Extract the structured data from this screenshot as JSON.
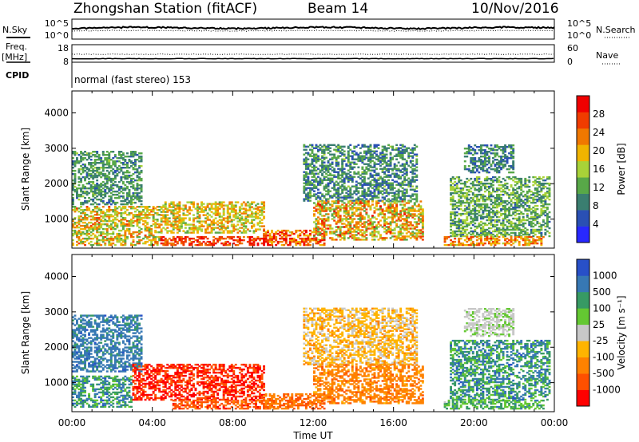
{
  "header": {
    "station_title": "Zhongshan Station (fitACF)",
    "beam_label": "Beam 14",
    "date_label": "10/Nov/2016",
    "cpid_text": "normal (fast stereo) 153"
  },
  "params": {
    "nsky_label": "N.Sky",
    "nsearch_label": "N.Search",
    "freq_label_line1": "Freq.",
    "freq_label_line2": "[MHz]",
    "nave_label": "Nave",
    "cpid_label": "CPID",
    "nsky_ticks": [
      "10^5",
      "10^0"
    ],
    "nsearch_ticks": [
      "10^5",
      "10^0"
    ],
    "freq_ticks": [
      "18",
      "8"
    ],
    "nave_ticks": [
      "60",
      "0"
    ]
  },
  "colors": {
    "power": [
      "#2828ff",
      "#2a50b4",
      "#3a7e70",
      "#58a848",
      "#a8d238",
      "#f0b400",
      "#f07800",
      "#f03c00",
      "#f00000"
    ],
    "velocity": [
      "#ff0000",
      "#ff5000",
      "#ff8200",
      "#ffb400",
      "#c8c8c8",
      "#64c832",
      "#379a64",
      "#3778b4",
      "#2850c8"
    ]
  },
  "chart_data": [
    {
      "type": "heatmap",
      "name": "power-panel",
      "xlabel": "",
      "ylabel": "Slant Range [km]",
      "x_range_hours": [
        0,
        24
      ],
      "ylim_km": [
        180,
        4620
      ],
      "yticks": [
        "1000",
        "2000",
        "3000",
        "4000"
      ],
      "colorbar": {
        "label": "Power [dB]",
        "range": [
          0,
          32
        ],
        "ticks": [
          "4",
          "8",
          "12",
          "16",
          "20",
          "24",
          "28"
        ]
      },
      "regions": [
        {
          "t": [
            0.0,
            4.4
          ],
          "r": [
            250,
            1350
          ],
          "level": [
            0.35,
            0.8
          ]
        },
        {
          "t": [
            0.0,
            3.5
          ],
          "r": [
            1400,
            2900
          ],
          "level": [
            0.2,
            0.45
          ]
        },
        {
          "t": [
            4.4,
            9.5
          ],
          "r": [
            600,
            1500
          ],
          "level": [
            0.4,
            0.75
          ]
        },
        {
          "t": [
            4.4,
            10.0
          ],
          "r": [
            250,
            500
          ],
          "level": [
            0.7,
            1.0
          ]
        },
        {
          "t": [
            9.5,
            12.5
          ],
          "r": [
            250,
            700
          ],
          "level": [
            0.55,
            1.0
          ]
        },
        {
          "t": [
            11.5,
            17.2
          ],
          "r": [
            1500,
            3100
          ],
          "level": [
            0.15,
            0.45
          ]
        },
        {
          "t": [
            12.0,
            17.5
          ],
          "r": [
            400,
            1500
          ],
          "level": [
            0.35,
            0.9
          ]
        },
        {
          "t": [
            18.8,
            23.8
          ],
          "r": [
            500,
            2200
          ],
          "level": [
            0.2,
            0.55
          ]
        },
        {
          "t": [
            19.5,
            22.0
          ],
          "r": [
            2300,
            3100
          ],
          "level": [
            0.15,
            0.4
          ]
        },
        {
          "t": [
            18.5,
            23.5
          ],
          "r": [
            250,
            500
          ],
          "level": [
            0.5,
            0.9
          ]
        }
      ]
    },
    {
      "type": "heatmap",
      "name": "velocity-panel",
      "xlabel": "Time UT",
      "ylabel": "Slant Range [km]",
      "x_range_hours": [
        0,
        24
      ],
      "xticks": [
        "00:00",
        "04:00",
        "08:00",
        "12:00",
        "16:00",
        "20:00",
        "00:00"
      ],
      "ylim_km": [
        180,
        4620
      ],
      "yticks": [
        "1000",
        "2000",
        "3000",
        "4000"
      ],
      "colorbar": {
        "label": "Velocity [m s⁻¹]",
        "ticks": [
          "1000",
          "500",
          "100",
          "25",
          "-25",
          "-100",
          "-500",
          "-1000"
        ]
      },
      "regions": [
        {
          "t": [
            0.0,
            3.0
          ],
          "r": [
            300,
            1200
          ],
          "level": [
            0.6,
            0.9
          ]
        },
        {
          "t": [
            0.0,
            3.5
          ],
          "r": [
            1300,
            2900
          ],
          "level": [
            0.75,
            0.9
          ]
        },
        {
          "t": [
            3.0,
            9.5
          ],
          "r": [
            500,
            1500
          ],
          "level": [
            0.0,
            0.2
          ]
        },
        {
          "t": [
            5.0,
            10.0
          ],
          "r": [
            250,
            500
          ],
          "level": [
            0.1,
            0.25
          ]
        },
        {
          "t": [
            9.5,
            12.5
          ],
          "r": [
            250,
            700
          ],
          "level": [
            0.15,
            0.3
          ]
        },
        {
          "t": [
            11.5,
            17.2
          ],
          "r": [
            1500,
            3100
          ],
          "level": [
            0.3,
            0.5
          ]
        },
        {
          "t": [
            12.0,
            17.5
          ],
          "r": [
            400,
            1500
          ],
          "level": [
            0.2,
            0.35
          ]
        },
        {
          "t": [
            18.8,
            23.8
          ],
          "r": [
            500,
            2200
          ],
          "level": [
            0.6,
            0.9
          ]
        },
        {
          "t": [
            19.5,
            22.0
          ],
          "r": [
            2300,
            3100
          ],
          "level": [
            0.45,
            0.6
          ]
        },
        {
          "t": [
            18.5,
            23.5
          ],
          "r": [
            250,
            500
          ],
          "level": [
            0.55,
            0.8
          ]
        }
      ]
    }
  ]
}
